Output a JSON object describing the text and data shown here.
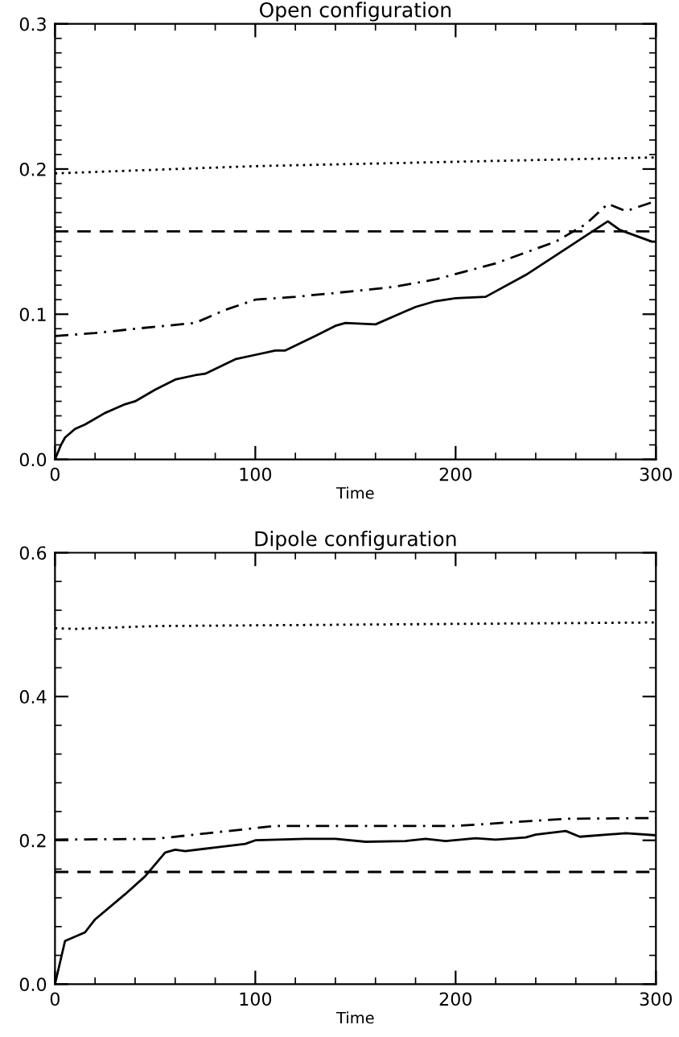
{
  "chart_data": [
    {
      "type": "line",
      "title": "Open configuration",
      "xlabel": "Time",
      "xlim": [
        0,
        300
      ],
      "xticks": [
        0,
        100,
        200,
        300
      ],
      "ylim": [
        0,
        0.3
      ],
      "yticks": [
        {
          "value": 0,
          "label": "0.0"
        },
        {
          "value": 0.1,
          "label": "0.1"
        },
        {
          "value": 0.2,
          "label": "0.2"
        },
        {
          "value": 0.3,
          "label": "0.3"
        }
      ],
      "grid": false,
      "legend": false,
      "series": [
        {
          "color": "#000000",
          "line_style": "solid",
          "x": [
            0,
            3,
            5,
            10,
            15,
            25,
            35,
            40,
            50,
            60,
            70,
            75,
            90,
            100,
            110,
            115,
            130,
            140,
            145,
            160,
            170,
            180,
            190,
            200,
            215,
            235,
            255,
            276,
            282,
            290,
            298,
            300
          ],
          "values": [
            0,
            0.01,
            0.015,
            0.021,
            0.024,
            0.032,
            0.038,
            0.04,
            0.048,
            0.055,
            0.058,
            0.059,
            0.069,
            0.072,
            0.075,
            0.075,
            0.085,
            0.092,
            0.094,
            0.093,
            0.099,
            0.105,
            0.109,
            0.111,
            0.112,
            0.127,
            0.145,
            0.164,
            0.158,
            0.154,
            0.15,
            0.15
          ]
        },
        {
          "color": "#000000",
          "line_style": "dashdot",
          "x": [
            0,
            20,
            40,
            70,
            85,
            100,
            120,
            150,
            170,
            190,
            220,
            250,
            265,
            276,
            285,
            300
          ],
          "values": [
            0.085,
            0.087,
            0.09,
            0.094,
            0.103,
            0.11,
            0.112,
            0.116,
            0.119,
            0.124,
            0.135,
            0.15,
            0.162,
            0.176,
            0.171,
            0.178
          ]
        },
        {
          "color": "#000000",
          "line_style": "dotted",
          "x": [
            0,
            100,
            200,
            300
          ],
          "values": [
            0.197,
            0.202,
            0.205,
            0.208
          ]
        }
      ],
      "ref_lines": [
        {
          "axis": "y",
          "value": 0.157,
          "color": "#000000",
          "line_style": "dashed"
        }
      ]
    },
    {
      "type": "line",
      "title": "Dipole configuration",
      "xlabel": "Time",
      "xlim": [
        0,
        300
      ],
      "xticks": [
        0,
        100,
        200,
        300
      ],
      "ylim": [
        0,
        0.6
      ],
      "yticks": [
        {
          "value": 0,
          "label": "0.0"
        },
        {
          "value": 0.2,
          "label": "0.2"
        },
        {
          "value": 0.4,
          "label": "0.4"
        },
        {
          "value": 0.6,
          "label": "0.6"
        }
      ],
      "grid": false,
      "legend": false,
      "series": [
        {
          "color": "#000000",
          "line_style": "solid",
          "x": [
            0,
            5,
            15,
            20,
            35,
            45,
            55,
            60,
            65,
            80,
            95,
            100,
            125,
            140,
            155,
            175,
            185,
            195,
            210,
            220,
            235,
            240,
            255,
            262,
            285,
            300
          ],
          "values": [
            0,
            0.06,
            0.072,
            0.09,
            0.125,
            0.15,
            0.183,
            0.187,
            0.185,
            0.19,
            0.195,
            0.2,
            0.202,
            0.202,
            0.198,
            0.199,
            0.202,
            0.199,
            0.203,
            0.201,
            0.204,
            0.208,
            0.213,
            0.205,
            0.21,
            0.207
          ]
        },
        {
          "color": "#000000",
          "line_style": "dashdot",
          "x": [
            0,
            50,
            110,
            200,
            255,
            300
          ],
          "values": [
            0.201,
            0.202,
            0.22,
            0.22,
            0.23,
            0.231
          ]
        },
        {
          "color": "#000000",
          "line_style": "dotted",
          "x": [
            0,
            10,
            50,
            300
          ],
          "values": [
            0.495,
            0.494,
            0.498,
            0.503
          ]
        }
      ],
      "ref_lines": [
        {
          "axis": "y",
          "value": 0.156,
          "color": "#000000",
          "line_style": "dashed"
        }
      ]
    }
  ]
}
